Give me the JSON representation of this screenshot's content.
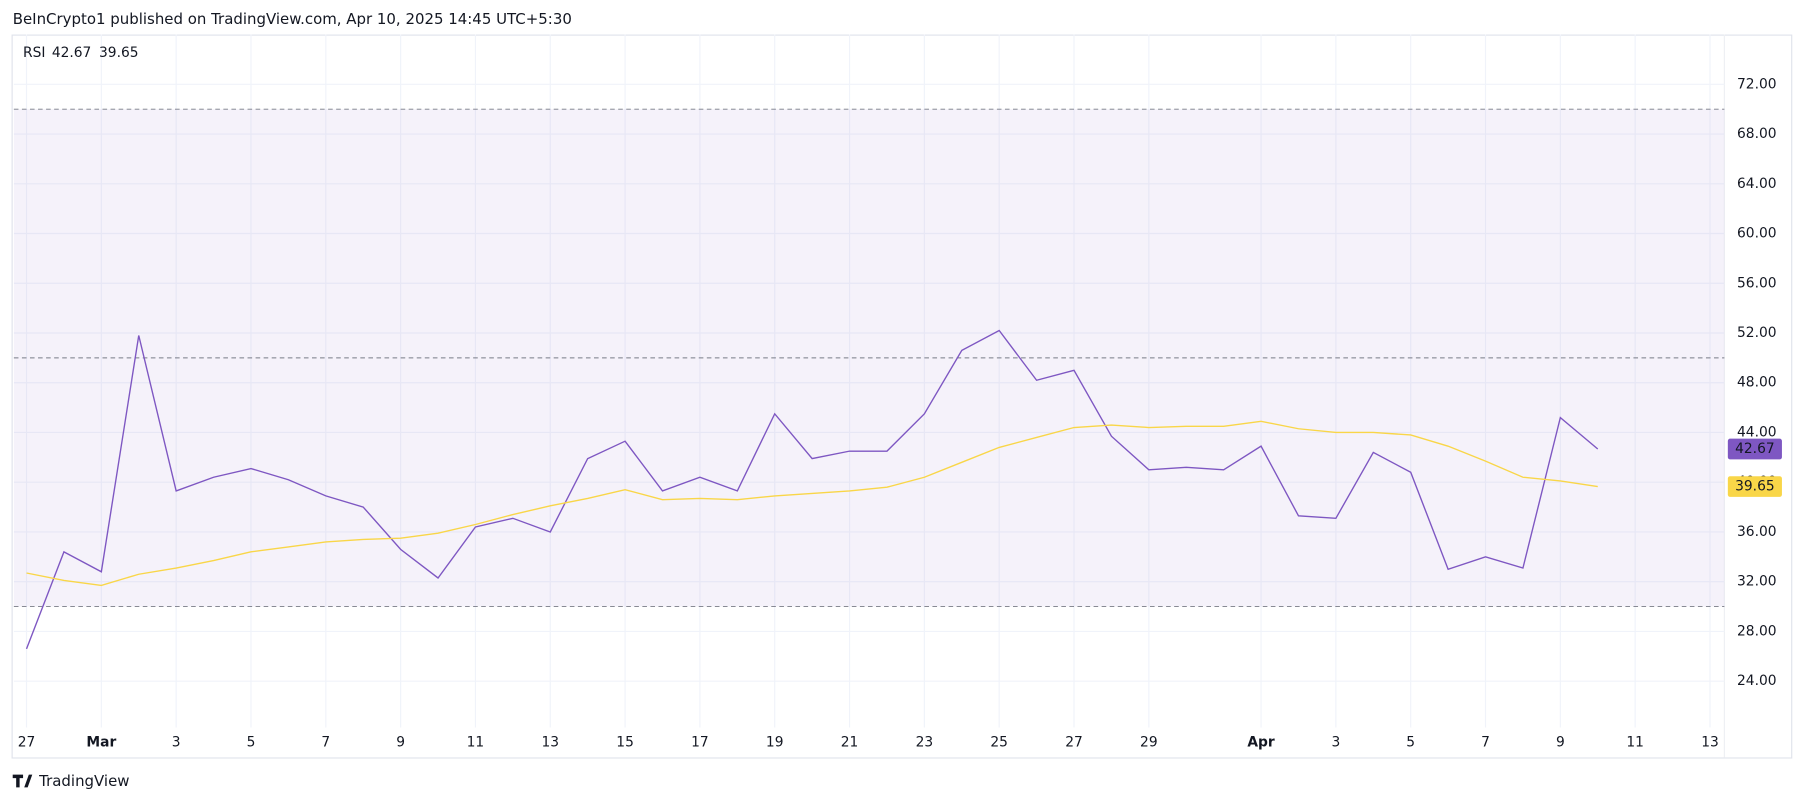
{
  "header": "BeInCrypto1 published on TradingView.com, Apr 10, 2025 14:45 UTC+5:30",
  "footer": "TradingView",
  "chart_data": {
    "type": "line",
    "categories": [
      "27",
      null,
      "Mar",
      null,
      "3",
      null,
      "5",
      null,
      "7",
      null,
      "9",
      null,
      "11",
      null,
      "13",
      null,
      "15",
      null,
      "17",
      null,
      "19",
      null,
      "21",
      null,
      "23",
      null,
      "25",
      null,
      "27",
      null,
      "29",
      null,
      null,
      "Apr",
      null,
      "3",
      null,
      "5",
      null,
      "7",
      null,
      "9",
      null,
      "11",
      null,
      "13"
    ],
    "series": [
      {
        "name": "RSI",
        "color": "#7e57c2",
        "values": [
          26.6,
          34.4,
          32.8,
          51.8,
          39.3,
          40.4,
          41.1,
          40.2,
          38.9,
          38.0,
          34.6,
          32.3,
          36.4,
          37.1,
          36.0,
          41.9,
          43.3,
          39.3,
          40.4,
          39.3,
          45.5,
          41.9,
          42.5,
          42.5,
          45.5,
          50.6,
          52.2,
          48.2,
          49.0,
          43.7,
          41.0,
          41.2,
          41.0,
          42.9,
          37.3,
          37.1,
          42.4,
          40.8,
          33.0,
          34.0,
          33.1,
          45.2,
          42.67,
          null,
          null,
          null
        ]
      },
      {
        "color": "#f9d648",
        "values": [
          32.7,
          32.1,
          31.7,
          32.6,
          33.1,
          33.7,
          34.4,
          34.8,
          35.2,
          35.4,
          35.5,
          35.9,
          36.6,
          37.4,
          38.1,
          38.7,
          39.4,
          38.6,
          38.7,
          38.6,
          38.9,
          39.1,
          39.3,
          39.6,
          40.4,
          41.6,
          42.8,
          43.6,
          44.4,
          44.6,
          44.4,
          44.5,
          44.5,
          44.9,
          44.3,
          44.0,
          44.0,
          43.8,
          42.9,
          41.7,
          40.4,
          40.1,
          39.65,
          null,
          null,
          null
        ]
      }
    ],
    "ylim": [
      20,
      76
    ],
    "yticks": [
      {
        "value": 24,
        "label": "24.00"
      },
      {
        "value": 28,
        "label": "28.00"
      },
      {
        "value": 32,
        "label": "32.00"
      },
      {
        "value": 36,
        "label": "36.00"
      },
      {
        "value": 40,
        "label": "40.00"
      },
      {
        "value": 44,
        "label": "44.00"
      },
      {
        "value": 48,
        "label": "48.00"
      },
      {
        "value": 52,
        "label": "52.00"
      },
      {
        "value": 56,
        "label": "56.00"
      },
      {
        "value": 60,
        "label": "60.00"
      },
      {
        "value": 64,
        "label": "64.00"
      },
      {
        "value": 68,
        "label": "68.00"
      },
      {
        "value": 72,
        "label": "72.00"
      }
    ],
    "levels": [
      70,
      50,
      30
    ],
    "band_color": "#7e57c2",
    "grid": true
  }
}
